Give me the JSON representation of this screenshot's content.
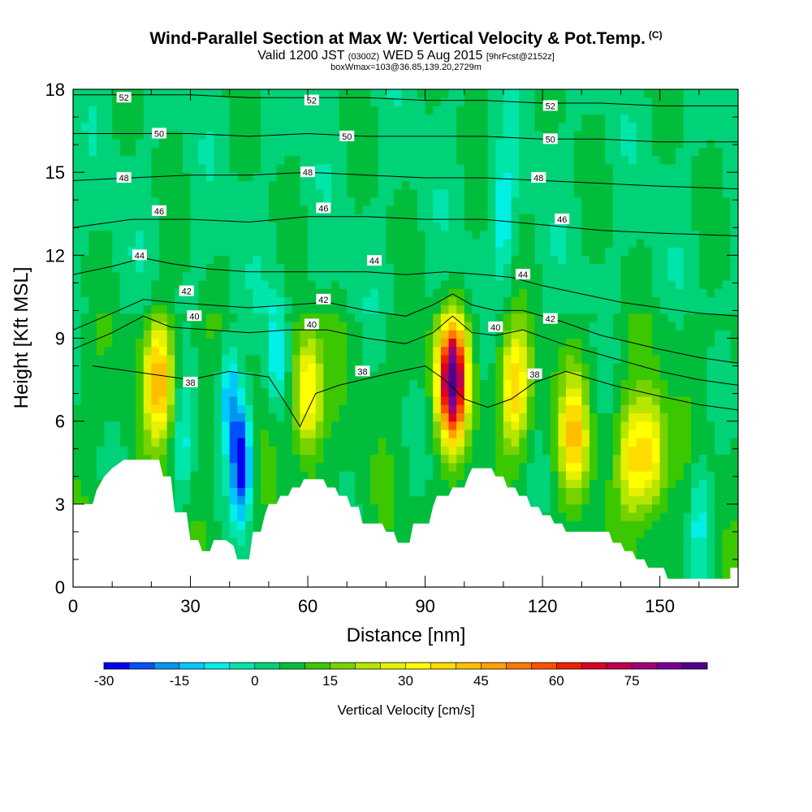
{
  "header": {
    "title": "Wind-Parallel Section at Max W: Vertical Velocity & Pot.Temp.",
    "copyright": "(C)",
    "valid_prefix": "Valid 1200 JST",
    "valid_utc": "(0300Z)",
    "valid_date": "WED 5 Aug 2015",
    "forecast": "[9hrFcst@2152z]",
    "box_info": "boxWmax=103@36.85,139.20,2729m"
  },
  "chart_data": {
    "type": "heatmap",
    "xlabel": "Distance [nm]",
    "ylabel": "Height [Kft MSL]",
    "xlim": [
      0,
      170
    ],
    "ylim": [
      0,
      18
    ],
    "xticks": [
      "0",
      "30",
      "60",
      "90",
      "120",
      "150"
    ],
    "yticks": [
      "0",
      "3",
      "6",
      "9",
      "12",
      "15",
      "18"
    ],
    "colorbar": {
      "label": "Vertical Velocity [cm/s]",
      "min": -30,
      "max": 90,
      "step": 5,
      "tick_labels": [
        "-30",
        "-15",
        "0",
        "15",
        "30",
        "45",
        "60",
        "75"
      ],
      "colors": [
        "#0000f0",
        "#0050ff",
        "#0096f0",
        "#00c8ff",
        "#00f0e6",
        "#00e6aa",
        "#00d278",
        "#00be3c",
        "#3cc800",
        "#78d200",
        "#b4e600",
        "#e6f000",
        "#ffff00",
        "#ffdc00",
        "#ffbe00",
        "#ffa000",
        "#ff7800",
        "#ff5000",
        "#f01e00",
        "#dc0028",
        "#be0050",
        "#a00078",
        "#780096",
        "#50008c"
      ]
    },
    "updrafts": [
      {
        "x": 22,
        "y": 7.5,
        "peak": 45
      },
      {
        "x": 60,
        "y": 7.0,
        "peak": 40
      },
      {
        "x": 97,
        "y": 7.5,
        "peak": 90
      },
      {
        "x": 113,
        "y": 7.2,
        "peak": 40
      },
      {
        "x": 128,
        "y": 5.5,
        "peak": 40
      },
      {
        "x": 143,
        "y": 4.8,
        "peak": 33
      },
      {
        "x": 148,
        "y": 4.8,
        "peak": 35
      }
    ],
    "downdrafts": [
      {
        "x": 43,
        "y": 4.5,
        "peak": -30
      },
      {
        "x": 40,
        "y": 7.0,
        "peak": -15
      },
      {
        "x": 52,
        "y": 8.5,
        "peak": -10
      },
      {
        "x": 110,
        "y": 13.5,
        "peak": -8
      },
      {
        "x": 160,
        "y": 2.5,
        "peak": -8
      },
      {
        "x": 28,
        "y": 5.0,
        "peak": -5
      }
    ],
    "terrain": [
      [
        0,
        3.0
      ],
      [
        5,
        3.0
      ],
      [
        6,
        3.5
      ],
      [
        8,
        4.0
      ],
      [
        10,
        4.3
      ],
      [
        13,
        4.6
      ],
      [
        22,
        4.6
      ],
      [
        23,
        4.0
      ],
      [
        25,
        4.0
      ],
      [
        26,
        2.7
      ],
      [
        29,
        2.7
      ],
      [
        30,
        1.7
      ],
      [
        32,
        1.7
      ],
      [
        33,
        1.3
      ],
      [
        35,
        1.3
      ],
      [
        36,
        1.7
      ],
      [
        39,
        1.7
      ],
      [
        41,
        1.5
      ],
      [
        42,
        1.0
      ],
      [
        45,
        1.0
      ],
      [
        46,
        2.0
      ],
      [
        48,
        2.0
      ],
      [
        49,
        2.6
      ],
      [
        50,
        3.0
      ],
      [
        52,
        3.0
      ],
      [
        53,
        3.3
      ],
      [
        55,
        3.3
      ],
      [
        56,
        3.6
      ],
      [
        58,
        3.6
      ],
      [
        59,
        3.9
      ],
      [
        64,
        3.9
      ],
      [
        65,
        3.6
      ],
      [
        67,
        3.6
      ],
      [
        68,
        3.3
      ],
      [
        70,
        3.3
      ],
      [
        71,
        2.9
      ],
      [
        73,
        2.9
      ],
      [
        74,
        2.3
      ],
      [
        79,
        2.3
      ],
      [
        80,
        2.0
      ],
      [
        82,
        2.0
      ],
      [
        83,
        1.6
      ],
      [
        86,
        1.6
      ],
      [
        87,
        2.3
      ],
      [
        91,
        2.3
      ],
      [
        92,
        2.9
      ],
      [
        93,
        3.3
      ],
      [
        96,
        3.3
      ],
      [
        97,
        3.6
      ],
      [
        100,
        3.6
      ],
      [
        101,
        4.0
      ],
      [
        102,
        4.3
      ],
      [
        107,
        4.3
      ],
      [
        108,
        4.0
      ],
      [
        110,
        4.0
      ],
      [
        111,
        3.6
      ],
      [
        113,
        3.6
      ],
      [
        114,
        3.3
      ],
      [
        116,
        3.3
      ],
      [
        117,
        2.9
      ],
      [
        119,
        2.9
      ],
      [
        120,
        2.6
      ],
      [
        122,
        2.6
      ],
      [
        123,
        2.3
      ],
      [
        125,
        2.3
      ],
      [
        126,
        2.0
      ],
      [
        137,
        2.0
      ],
      [
        138,
        1.6
      ],
      [
        140,
        1.6
      ],
      [
        141,
        1.3
      ],
      [
        143,
        1.3
      ],
      [
        144,
        1.0
      ],
      [
        146,
        1.0
      ],
      [
        147,
        0.7
      ],
      [
        151,
        0.7
      ],
      [
        152,
        0.3
      ],
      [
        168,
        0.3
      ],
      [
        168,
        0.7
      ],
      [
        170,
        0.7
      ]
    ],
    "isentropes": [
      {
        "value": 38,
        "label": "38",
        "points": [
          [
            5,
            8.0
          ],
          [
            15,
            7.8
          ],
          [
            30,
            7.5
          ],
          [
            40,
            7.8
          ],
          [
            50,
            7.6
          ],
          [
            55,
            6.5
          ],
          [
            58,
            5.8
          ],
          [
            62,
            7.0
          ],
          [
            68,
            7.3
          ],
          [
            80,
            7.7
          ],
          [
            90,
            8.0
          ],
          [
            95,
            7.5
          ],
          [
            100,
            6.8
          ],
          [
            106,
            6.5
          ],
          [
            112,
            6.8
          ],
          [
            118,
            7.4
          ],
          [
            126,
            7.8
          ],
          [
            138,
            7.3
          ],
          [
            150,
            6.9
          ],
          [
            160,
            6.6
          ],
          [
            170,
            6.4
          ]
        ],
        "labels": [
          [
            30,
            7.4
          ],
          [
            74,
            7.8
          ],
          [
            118,
            7.7
          ]
        ]
      },
      {
        "value": 40,
        "label": "40",
        "points": [
          [
            0,
            8.6
          ],
          [
            10,
            9.2
          ],
          [
            18,
            9.8
          ],
          [
            25,
            9.4
          ],
          [
            35,
            9.3
          ],
          [
            45,
            9.2
          ],
          [
            55,
            9.3
          ],
          [
            65,
            9.3
          ],
          [
            75,
            9.0
          ],
          [
            85,
            8.8
          ],
          [
            92,
            9.2
          ],
          [
            97,
            9.8
          ],
          [
            102,
            9.2
          ],
          [
            108,
            9.1
          ],
          [
            115,
            9.3
          ],
          [
            125,
            8.8
          ],
          [
            135,
            8.4
          ],
          [
            150,
            7.8
          ],
          [
            160,
            7.5
          ],
          [
            170,
            7.3
          ]
        ],
        "labels": [
          [
            31,
            9.8
          ],
          [
            61,
            9.5
          ],
          [
            108,
            9.4
          ]
        ]
      },
      {
        "value": 42,
        "label": "42",
        "points": [
          [
            0,
            9.3
          ],
          [
            10,
            9.9
          ],
          [
            18,
            10.4
          ],
          [
            25,
            10.3
          ],
          [
            35,
            10.2
          ],
          [
            45,
            10.1
          ],
          [
            55,
            10.2
          ],
          [
            65,
            10.3
          ],
          [
            75,
            10.0
          ],
          [
            85,
            9.8
          ],
          [
            92,
            10.2
          ],
          [
            97,
            10.6
          ],
          [
            102,
            10.2
          ],
          [
            108,
            10.0
          ],
          [
            115,
            10.0
          ],
          [
            125,
            9.6
          ],
          [
            135,
            9.1
          ],
          [
            150,
            8.6
          ],
          [
            160,
            8.3
          ],
          [
            170,
            8.1
          ]
        ],
        "labels": [
          [
            29,
            10.7
          ],
          [
            64,
            10.4
          ],
          [
            122,
            9.7
          ]
        ]
      },
      {
        "value": 44,
        "label": "44",
        "points": [
          [
            0,
            11.3
          ],
          [
            10,
            11.6
          ],
          [
            18,
            11.9
          ],
          [
            25,
            11.7
          ],
          [
            35,
            11.5
          ],
          [
            45,
            11.4
          ],
          [
            55,
            11.4
          ],
          [
            65,
            11.4
          ],
          [
            75,
            11.4
          ],
          [
            85,
            11.3
          ],
          [
            95,
            11.4
          ],
          [
            105,
            11.3
          ],
          [
            112,
            11.2
          ],
          [
            120,
            10.9
          ],
          [
            130,
            10.6
          ],
          [
            140,
            10.3
          ],
          [
            150,
            10.1
          ],
          [
            160,
            9.9
          ],
          [
            170,
            9.8
          ]
        ],
        "labels": [
          [
            17,
            12.0
          ],
          [
            77,
            11.8
          ],
          [
            115,
            11.3
          ]
        ]
      },
      {
        "value": 46,
        "label": "46",
        "points": [
          [
            0,
            13.0
          ],
          [
            15,
            13.3
          ],
          [
            30,
            13.3
          ],
          [
            45,
            13.2
          ],
          [
            60,
            13.4
          ],
          [
            75,
            13.4
          ],
          [
            90,
            13.3
          ],
          [
            105,
            13.3
          ],
          [
            120,
            13.1
          ],
          [
            135,
            12.9
          ],
          [
            150,
            12.8
          ],
          [
            170,
            12.7
          ]
        ],
        "labels": [
          [
            22,
            13.6
          ],
          [
            64,
            13.7
          ],
          [
            125,
            13.3
          ]
        ]
      },
      {
        "value": 48,
        "label": "48",
        "points": [
          [
            0,
            14.7
          ],
          [
            15,
            14.8
          ],
          [
            30,
            14.9
          ],
          [
            45,
            14.9
          ],
          [
            60,
            15.0
          ],
          [
            75,
            14.9
          ],
          [
            90,
            14.8
          ],
          [
            105,
            14.8
          ],
          [
            120,
            14.7
          ],
          [
            135,
            14.6
          ],
          [
            150,
            14.5
          ],
          [
            170,
            14.4
          ]
        ],
        "labels": [
          [
            13,
            14.8
          ],
          [
            60,
            15.0
          ],
          [
            119,
            14.8
          ]
        ]
      },
      {
        "value": 50,
        "label": "50",
        "points": [
          [
            0,
            16.4
          ],
          [
            15,
            16.4
          ],
          [
            30,
            16.4
          ],
          [
            45,
            16.3
          ],
          [
            60,
            16.4
          ],
          [
            75,
            16.3
          ],
          [
            90,
            16.3
          ],
          [
            105,
            16.3
          ],
          [
            120,
            16.2
          ],
          [
            135,
            16.2
          ],
          [
            150,
            16.1
          ],
          [
            170,
            16.1
          ]
        ],
        "labels": [
          [
            22,
            16.4
          ],
          [
            70,
            16.3
          ],
          [
            122,
            16.2
          ]
        ]
      },
      {
        "value": 52,
        "label": "52",
        "points": [
          [
            0,
            17.8
          ],
          [
            15,
            17.8
          ],
          [
            30,
            17.8
          ],
          [
            45,
            17.7
          ],
          [
            60,
            17.7
          ],
          [
            75,
            17.7
          ],
          [
            90,
            17.6
          ],
          [
            105,
            17.6
          ],
          [
            120,
            17.5
          ],
          [
            135,
            17.5
          ],
          [
            150,
            17.4
          ],
          [
            170,
            17.4
          ]
        ],
        "labels": [
          [
            13,
            17.7
          ],
          [
            61,
            17.6
          ],
          [
            122,
            17.4
          ]
        ]
      }
    ]
  }
}
